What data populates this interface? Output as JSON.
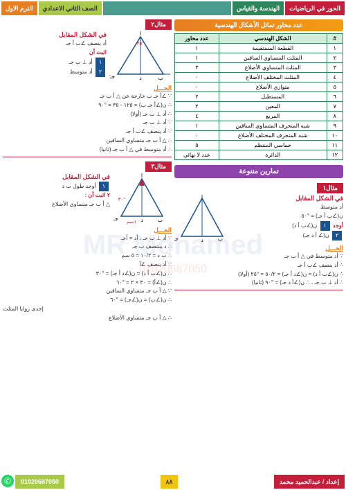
{
  "header": {
    "h1": "الحور في الرياضيات",
    "h2": "الهندسة والقياس",
    "h3": "الصف الثاني الاعدادي",
    "h4": "الترم الاول"
  },
  "rightCol": {
    "title": "عدد محاور تماثل الأشكال الهندسية",
    "tableHeaders": [
      "#",
      "الشكل الهندسي",
      "عدد محاور"
    ],
    "rows": [
      [
        "١",
        "القطعة المستقيمة",
        "١"
      ],
      [
        "٢",
        "المثلث المتساوي الساقين",
        "١"
      ],
      [
        "٣",
        "المثلث المتساوي الأضلاع",
        "٣"
      ],
      [
        "٤",
        "المثلث المختلف الأضلاع",
        "٠"
      ],
      [
        "٥",
        "متوازي الأضلاع",
        "٠"
      ],
      [
        "٦",
        "المستطيل",
        "٢"
      ],
      [
        "٧",
        "المعين",
        "٢"
      ],
      [
        "٨",
        "المربع",
        "٤"
      ],
      [
        "٩",
        "شبه المنحرف المتساوي الساقين",
        "١"
      ],
      [
        "١٠",
        "شبه المنحرف المختلف الأضلاع",
        "٠"
      ],
      [
        "١١",
        "خماسي المنتظم",
        "٥"
      ],
      [
        "١٢",
        "الدائرة",
        "عدد لا نهائي"
      ]
    ],
    "exercises": "تمارين متنوعة",
    "ex1": {
      "label": "مثال١",
      "sub": "في الشكل المقابل",
      "l1": "أد متوسط",
      "l2": "ن(∠ب أ جـ) = °٥٠",
      "l3": "أوجد",
      "q1": "١",
      "q1t": "ن(∠ب أ د)",
      "q2": "٢",
      "q2t": "ن(∠ أ د جـ)",
      "sol": "الحـــل",
      "s1": "∵ أد متوسط في △ أ ب جـ",
      "s2": "∴ أد ينصف ∠ب أ جـ",
      "s3": "∴ ن(∠ب أ د) = ن(∠د أ جـ) = ٥٠/٢ = °٢٥ (أولا)",
      "s4": "∴ أد ⊥ ب جـ ، ∴ ن(∠أ د جـ) = °٩٠ (ثانيا)"
    }
  },
  "leftCol": {
    "ex2": {
      "label": "مثال٢",
      "sub": "في الشكل المقابل",
      "l1": "أد ينصف ∠ب أ جـ",
      "l2": "اثبت أن",
      "q1": "١",
      "q1t": "أد ⊥ ب جـ",
      "q2": "٢",
      "q2t": "أد متوسط",
      "sol": "الحـــل",
      "s1": "∵ ∠أ جـ ب  خارجة عن △ أ ب جـ",
      "s2": "∴ ن(∠أ جـ ب) = ١٢٥ - ٣٥ = °٩٠",
      "s3": "∴ أد ⊥ ب جـ   (أولا)",
      "s4": "∵ أد ⊥ ب جـ",
      "s5": "∵ أد ينصف ∠ب أ جـ",
      "s6": "∴ △ أ ب جـ متساوي الساقين",
      "s7": "∴ أد متوسط في △ أ ب جـ   (ثانيا)"
    },
    "ex3": {
      "label": "مثال٣",
      "sub": "في الشكل المقابل",
      "l1": "أوجد طول ب د",
      "l2": "٢  اثبت أن :",
      "l3": "△ أ ب جـ متساوي الأضلاع",
      "sol": "الحـــل",
      "s1": "∵ أد ⊥ ب جـ   ،   أد = أجـ",
      "s2": "∴ د منتصف ب جـ",
      "s3": "∴ ب د = ١٠/٢ = ٥ سم",
      "s4": "∵ أد ينصف ∠أ",
      "s5": "∴ ن(∠ب أ د) = ن(∠د أ جـ) = °٣٠",
      "s6": "∴ ن(∠أ) = ٣٠ × ٢ = °٦٠",
      "s7": "∵ △ أ ب جـ متساوي الساقين",
      "s8": "∴ ن(∠ب) = ن(∠جـ) = °٦٠",
      "s9": "إحدى زوايا المثلث",
      "s10": "∴ △ أ ب جـ متساوي الأضلاع"
    }
  },
  "footer": {
    "author": "إعداد / عبدالحميد محمد",
    "page": "٨٨",
    "phone": "01020687050"
  },
  "colors": {
    "red": "#c41e3a",
    "green": "#2d8659",
    "orange": "#e67e22",
    "purple": "#8e44ad"
  }
}
